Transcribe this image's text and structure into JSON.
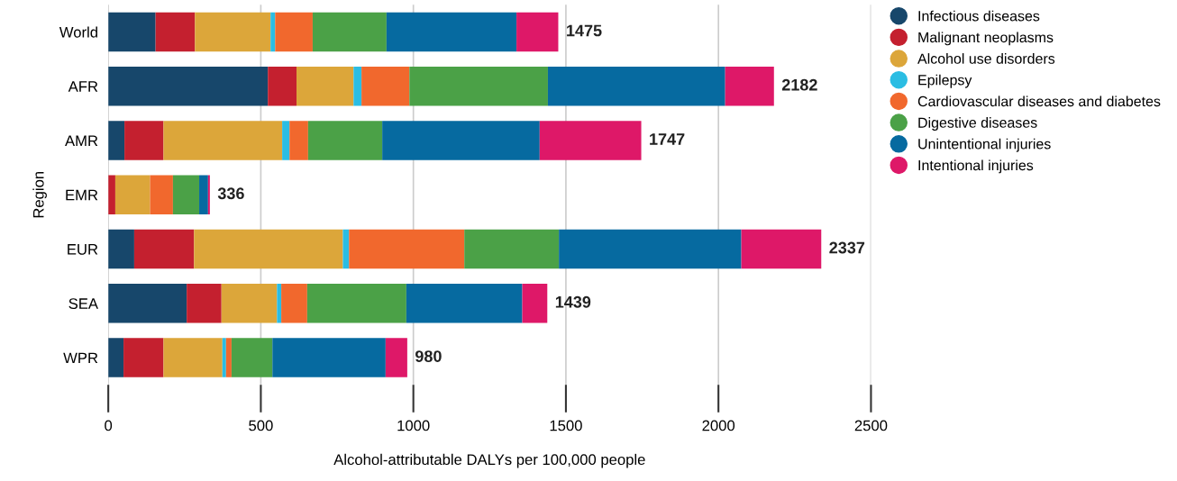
{
  "chart_data": {
    "type": "bar",
    "orientation": "horizontal",
    "stacked": true,
    "xlabel": "Alcohol-attributable DALYs per 100,000 people",
    "ylabel": "Region",
    "categories": [
      "World",
      "AFR",
      "AMR",
      "EMR",
      "EUR",
      "SEA",
      "WPR"
    ],
    "series": [
      {
        "name": "Infectious diseases",
        "color": "#17476b",
        "values": [
          155,
          523,
          53,
          null,
          85,
          257,
          50
        ]
      },
      {
        "name": "Malignant neoplasms",
        "color": "#c4202f",
        "values": [
          129,
          94,
          128,
          23,
          196,
          114,
          131
        ]
      },
      {
        "name": "Alcohol use disorders",
        "color": "#dca63a",
        "values": [
          248,
          187,
          389,
          114,
          488,
          182,
          193
        ]
      },
      {
        "name": "Epilepsy",
        "color": "#2bbde3",
        "values": [
          15,
          26,
          24,
          0,
          20,
          14,
          12
        ]
      },
      {
        "name": "Cardiovascular diseases and diabetes",
        "color": "#f1682d",
        "values": [
          123,
          157,
          61,
          75,
          378,
          85,
          18
        ]
      },
      {
        "name": "Digestive diseases",
        "color": "#4ba147",
        "values": [
          242,
          454,
          243,
          86,
          310,
          325,
          134
        ]
      },
      {
        "name": "Unintentional injuries",
        "color": "#066aa0",
        "values": [
          426,
          581,
          516,
          29,
          598,
          380,
          371
        ]
      },
      {
        "name": "Intentional injuries",
        "color": "#de1868",
        "values": [
          137,
          160,
          333,
          6,
          262,
          82,
          71
        ]
      }
    ],
    "totals": [
      "1475",
      "2182",
      "1747",
      "336",
      "2337",
      "1439",
      "980"
    ],
    "xlim": [
      0,
      2500
    ],
    "xticks": [
      0,
      500,
      1000,
      1500,
      2000,
      2500
    ],
    "grid": "x",
    "legend": "right",
    "marker": "circle"
  }
}
